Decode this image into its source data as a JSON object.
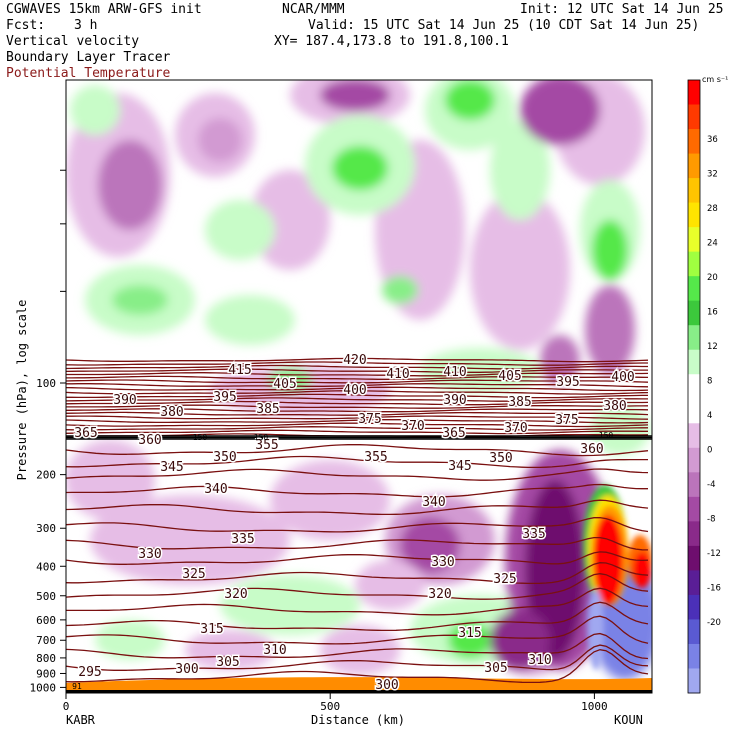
{
  "header": {
    "model": "CGWAVES 15km ARW-GFS init",
    "org": "NCAR/MMM",
    "init": "Init: 12 UTC Sat 14 Jun 25",
    "fcst_label": "Fcst:",
    "fcst_value": "3 h",
    "valid": "Valid: 15 UTC Sat 14 Jun 25 (10 CDT Sat 14 Jun 25)",
    "field1": "Vertical velocity",
    "field2": "Boundary Layer Tracer",
    "field3": "Potential Temperature",
    "xy": "XY= 187.4,173.8 to 191.8,100.1"
  },
  "colors": {
    "theta": "#7a1010",
    "frame": "#000000",
    "surface": "#ff8c00"
  },
  "chart_data": {
    "type": "heatmap",
    "xlabel": "Distance (km)",
    "ylabel": "Pressure (hPa), log scale",
    "y_scale": "log",
    "x_ticks": [
      "0",
      "500",
      "1000"
    ],
    "x_endpoints": [
      "KABR",
      "KOUN"
    ],
    "y_ticks": [
      "100",
      "200",
      "300",
      "400",
      "500",
      "600",
      "700",
      "800",
      "900",
      "1000"
    ],
    "colorbar": {
      "units": "cm s⁻¹",
      "ticks": [
        "36",
        "32",
        "28",
        "24",
        "20",
        "16",
        "12",
        "8",
        "4",
        "0",
        "-4",
        "-8",
        "-12",
        "-16",
        "-20"
      ],
      "colors": [
        "#ff0000",
        "#ff3a00",
        "#ff6a00",
        "#ff9a00",
        "#ffc400",
        "#ffe400",
        "#e8ff2a",
        "#a0ff40",
        "#55e84a",
        "#3cc83c",
        "#88ee88",
        "#c8fcc8",
        "#ffffff",
        "#ffffff",
        "#e6bde6",
        "#d29ad2",
        "#bb74bb",
        "#a44aa4",
        "#8a2a8a",
        "#6e0e6e",
        "#5a1e96",
        "#4b30b8",
        "#5a5ad2",
        "#7a82e6",
        "#a0a8f0"
      ]
    },
    "theta_labels": [
      "420",
      "415",
      "410",
      "410",
      "405",
      "405",
      "400",
      "400",
      "395",
      "395",
      "390",
      "390",
      "385",
      "385",
      "380",
      "380",
      "375",
      "375",
      "370",
      "370",
      "365",
      "365",
      "360",
      "360",
      "355",
      "355",
      "350",
      "350",
      "345",
      "345",
      "340",
      "340",
      "335",
      "335",
      "330",
      "330",
      "325",
      "325",
      "320",
      "320",
      "315",
      "315",
      "310",
      "310",
      "305",
      "305",
      "300",
      "300",
      "295",
      "150",
      "150",
      "150",
      "91"
    ]
  }
}
